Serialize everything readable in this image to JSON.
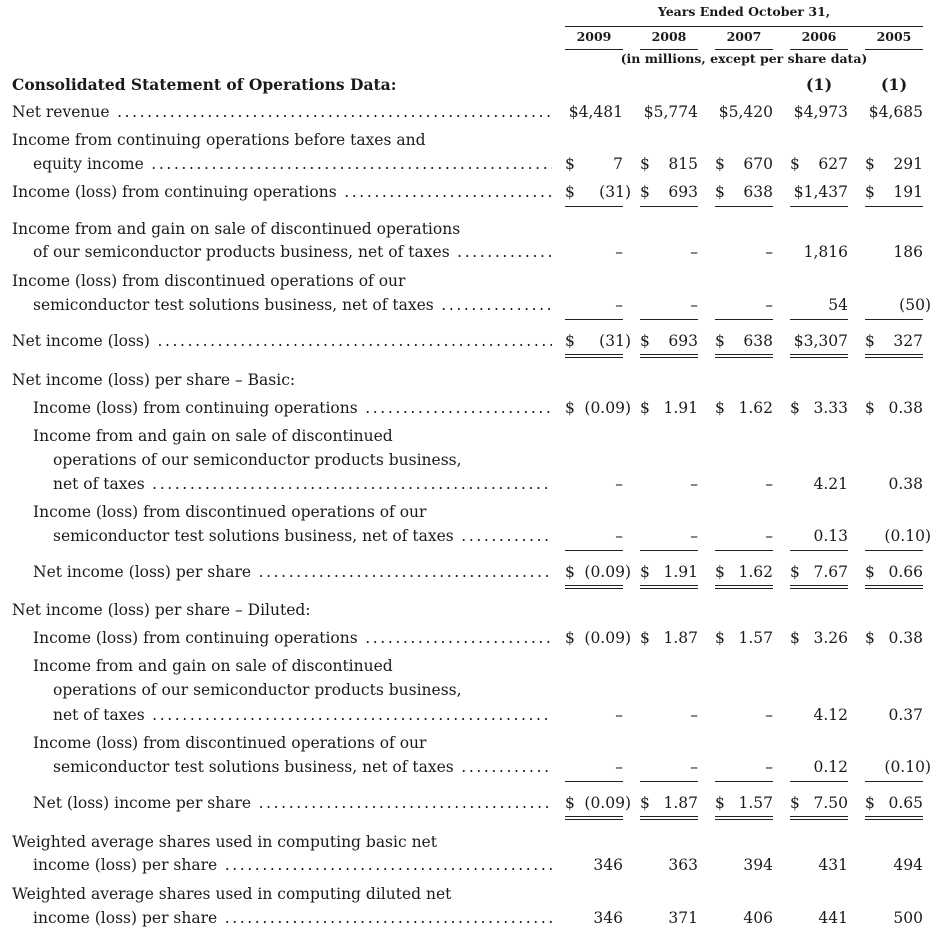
{
  "header": {
    "period_title": "Years Ended October 31,",
    "years": [
      "2009",
      "2008",
      "2007",
      "2006",
      "2005"
    ],
    "units_note": "(in millions, except per share data)",
    "section_title": "Consolidated Statement of Operations Data:",
    "footnotes": [
      "",
      "",
      "",
      "(1)",
      "(1)"
    ]
  },
  "rows": [
    {
      "label": "Net revenue",
      "indent": 0,
      "dots": true,
      "values": [
        {
          "d": "",
          "v": "$4,481"
        },
        {
          "d": "",
          "v": "$5,774"
        },
        {
          "d": "",
          "v": "$5,420"
        },
        {
          "d": "",
          "v": "$4,973"
        },
        {
          "d": "",
          "v": "$4,685"
        }
      ]
    },
    {
      "label": "Income from continuing operations before taxes and",
      "indent": 0,
      "dots": false
    },
    {
      "label": "equity income",
      "indent": 1,
      "dots": true,
      "values": [
        {
          "d": "$",
          "v": "7"
        },
        {
          "d": "$",
          "v": "815"
        },
        {
          "d": "$",
          "v": "670"
        },
        {
          "d": "$",
          "v": "627"
        },
        {
          "d": "$",
          "v": "291"
        }
      ]
    },
    {
      "label": "Income (loss) from continuing operations",
      "indent": 0,
      "dots": true,
      "rule": "single",
      "values": [
        {
          "d": "$",
          "v": "(31)"
        },
        {
          "d": "$",
          "v": "693"
        },
        {
          "d": "$",
          "v": "638"
        },
        {
          "d": "",
          "v": "$1,437"
        },
        {
          "d": "$",
          "v": "191"
        }
      ]
    },
    {
      "label": "Income from and gain on sale of discontinued operations",
      "indent": 0,
      "dots": false
    },
    {
      "label": "of our semiconductor products business, net of taxes",
      "indent": 1,
      "dots": true,
      "values": [
        {
          "d": "",
          "v": "–"
        },
        {
          "d": "",
          "v": "–"
        },
        {
          "d": "",
          "v": "–"
        },
        {
          "d": "",
          "v": "1,816"
        },
        {
          "d": "",
          "v": "186"
        }
      ]
    },
    {
      "label": "Income (loss) from discontinued operations of our",
      "indent": 0,
      "dots": false
    },
    {
      "label": "semiconductor test solutions business, net of taxes",
      "indent": 1,
      "dots": true,
      "rule": "single",
      "values": [
        {
          "d": "",
          "v": "–"
        },
        {
          "d": "",
          "v": "–"
        },
        {
          "d": "",
          "v": "–"
        },
        {
          "d": "",
          "v": "54"
        },
        {
          "d": "",
          "v": "(50)"
        }
      ]
    },
    {
      "label": "Net income (loss)",
      "indent": 0,
      "dots": true,
      "rule": "double",
      "values": [
        {
          "d": "$",
          "v": "(31)"
        },
        {
          "d": "$",
          "v": "693"
        },
        {
          "d": "$",
          "v": "638"
        },
        {
          "d": "",
          "v": "$3,307"
        },
        {
          "d": "$",
          "v": "327"
        }
      ]
    },
    {
      "label": "Net income (loss) per share – Basic:",
      "indent": 0,
      "dots": false
    },
    {
      "label": "Income (loss) from continuing operations",
      "indent": 1,
      "dots": true,
      "values": [
        {
          "d": "$",
          "v": "(0.09)"
        },
        {
          "d": "$",
          "v": "1.91"
        },
        {
          "d": "$",
          "v": "1.62"
        },
        {
          "d": "$",
          "v": "3.33"
        },
        {
          "d": "$",
          "v": "0.38"
        }
      ]
    },
    {
      "label": "Income from and gain on sale of discontinued",
      "indent": 1,
      "dots": false
    },
    {
      "label": "operations of our semiconductor products business,",
      "indent": 2,
      "dots": false
    },
    {
      "label": "net of taxes",
      "indent": 2,
      "dots": true,
      "values": [
        {
          "d": "",
          "v": "–"
        },
        {
          "d": "",
          "v": "–"
        },
        {
          "d": "",
          "v": "–"
        },
        {
          "d": "",
          "v": "4.21"
        },
        {
          "d": "",
          "v": "0.38"
        }
      ]
    },
    {
      "label": "Income (loss) from discontinued operations of our",
      "indent": 1,
      "dots": false
    },
    {
      "label": "semiconductor test solutions business, net of taxes",
      "indent": 2,
      "dots": true,
      "rule": "single",
      "values": [
        {
          "d": "",
          "v": "–"
        },
        {
          "d": "",
          "v": "–"
        },
        {
          "d": "",
          "v": "–"
        },
        {
          "d": "",
          "v": "0.13"
        },
        {
          "d": "",
          "v": "(0.10)"
        }
      ]
    },
    {
      "label": "Net income (loss) per share",
      "indent": 1,
      "dots": true,
      "rule": "double",
      "values": [
        {
          "d": "$",
          "v": "(0.09)"
        },
        {
          "d": "$",
          "v": "1.91"
        },
        {
          "d": "$",
          "v": "1.62"
        },
        {
          "d": "$",
          "v": "7.67"
        },
        {
          "d": "$",
          "v": "0.66"
        }
      ]
    },
    {
      "label": "Net income (loss) per share – Diluted:",
      "indent": 0,
      "dots": false
    },
    {
      "label": "Income (loss) from continuing operations",
      "indent": 1,
      "dots": true,
      "values": [
        {
          "d": "$",
          "v": "(0.09)"
        },
        {
          "d": "$",
          "v": "1.87"
        },
        {
          "d": "$",
          "v": "1.57"
        },
        {
          "d": "$",
          "v": "3.26"
        },
        {
          "d": "$",
          "v": "0.38"
        }
      ]
    },
    {
      "label": "Income from and gain on sale of discontinued",
      "indent": 1,
      "dots": false
    },
    {
      "label": "operations of our semiconductor products business,",
      "indent": 2,
      "dots": false
    },
    {
      "label": "net of taxes",
      "indent": 2,
      "dots": true,
      "values": [
        {
          "d": "",
          "v": "–"
        },
        {
          "d": "",
          "v": "–"
        },
        {
          "d": "",
          "v": "–"
        },
        {
          "d": "",
          "v": "4.12"
        },
        {
          "d": "",
          "v": "0.37"
        }
      ]
    },
    {
      "label": "Income (loss) from discontinued operations of our",
      "indent": 1,
      "dots": false
    },
    {
      "label": "semiconductor test solutions business, net of taxes",
      "indent": 2,
      "dots": true,
      "rule": "single",
      "values": [
        {
          "d": "",
          "v": "–"
        },
        {
          "d": "",
          "v": "–"
        },
        {
          "d": "",
          "v": "–"
        },
        {
          "d": "",
          "v": "0.12"
        },
        {
          "d": "",
          "v": "(0.10)"
        }
      ]
    },
    {
      "label": "Net (loss) income per share",
      "indent": 1,
      "dots": true,
      "rule": "double",
      "values": [
        {
          "d": "$",
          "v": "(0.09)"
        },
        {
          "d": "$",
          "v": "1.87"
        },
        {
          "d": "$",
          "v": "1.57"
        },
        {
          "d": "$",
          "v": "7.50"
        },
        {
          "d": "$",
          "v": "0.65"
        }
      ]
    },
    {
      "label": "Weighted average shares used in computing basic net",
      "indent": 0,
      "dots": false
    },
    {
      "label": "income (loss) per share",
      "indent": 1,
      "dots": true,
      "values": [
        {
          "d": "",
          "v": "346"
        },
        {
          "d": "",
          "v": "363"
        },
        {
          "d": "",
          "v": "394"
        },
        {
          "d": "",
          "v": "431"
        },
        {
          "d": "",
          "v": "494"
        }
      ]
    },
    {
      "label": "Weighted average shares used in computing diluted net",
      "indent": 0,
      "dots": false
    },
    {
      "label": "income (loss) per share",
      "indent": 1,
      "dots": true,
      "values": [
        {
          "d": "",
          "v": "346"
        },
        {
          "d": "",
          "v": "371"
        },
        {
          "d": "",
          "v": "406"
        },
        {
          "d": "",
          "v": "441"
        },
        {
          "d": "",
          "v": "500"
        }
      ]
    }
  ]
}
